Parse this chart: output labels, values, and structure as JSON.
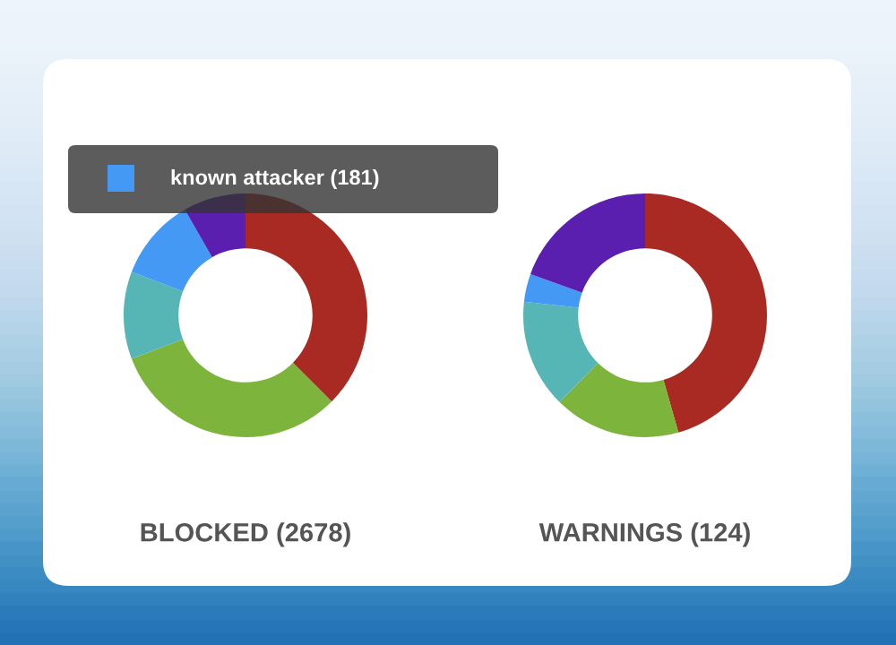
{
  "chart_data": [
    {
      "type": "donut",
      "title": "BLOCKED (2678)",
      "categories": [
        null,
        null,
        null,
        null,
        null
      ],
      "values": [
        37.5,
        31.7,
        11.6,
        10.9,
        8.3
      ],
      "colors": [
        "#a82a22",
        "#7cb43c",
        "#56b5b5",
        "#4499f5",
        "#5b1fb0"
      ],
      "annotations": [
        "known attacker (181)"
      ]
    },
    {
      "type": "donut",
      "title": "WARNINGS (124)",
      "categories": [
        null,
        null,
        null,
        null,
        null
      ],
      "values": [
        45.6,
        16.8,
        14.4,
        3.7,
        19.5
      ],
      "colors": [
        "#a82a22",
        "#7cb43c",
        "#56b5b5",
        "#4499f5",
        "#5b1fb0"
      ]
    }
  ]
}
